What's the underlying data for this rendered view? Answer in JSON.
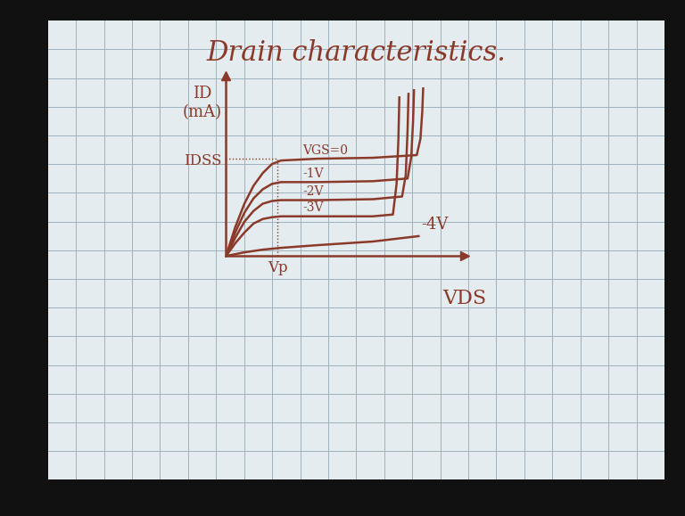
{
  "chart_data": {
    "type": "line",
    "title": "Drain characteristics.",
    "x_label": "VDS",
    "y_label": "ID\n(mA)",
    "xlim": [
      0,
      13
    ],
    "ylim": [
      0,
      10
    ],
    "xticks": [
      {
        "value": 2.8,
        "label": "Vp"
      }
    ],
    "yticks": [
      {
        "value": 5.4,
        "label": "IDSS"
      }
    ],
    "color": "#8b3a2a",
    "series": [
      {
        "name": "VGS=0",
        "x": [
          0,
          0.5,
          1,
          1.5,
          2,
          2.5,
          3,
          5,
          8,
          10.4,
          10.6,
          10.7,
          10.75
        ],
        "values": [
          0,
          1.6,
          2.9,
          3.9,
          4.6,
          5.1,
          5.3,
          5.4,
          5.45,
          5.6,
          6.5,
          8,
          9.3
        ]
      },
      {
        "name": "-1V",
        "x": [
          0,
          0.5,
          1,
          1.5,
          2,
          2.5,
          3,
          5,
          8,
          9.9,
          10.1,
          10.2,
          10.25
        ],
        "values": [
          0,
          1.3,
          2.4,
          3.2,
          3.7,
          4.0,
          4.1,
          4.1,
          4.15,
          4.3,
          5.5,
          7.5,
          9.2
        ]
      },
      {
        "name": "-2V",
        "x": [
          0,
          0.5,
          1,
          1.5,
          2,
          2.5,
          3,
          5,
          8,
          9.6,
          9.8,
          9.9,
          9.95
        ],
        "values": [
          0,
          1.0,
          1.9,
          2.5,
          2.9,
          3.05,
          3.1,
          3.1,
          3.15,
          3.3,
          4.5,
          7,
          9.0
        ]
      },
      {
        "name": "-3V",
        "x": [
          0,
          0.5,
          1,
          1.5,
          2,
          2.5,
          3,
          5,
          8,
          9.1,
          9.3,
          9.4,
          9.45
        ],
        "values": [
          0,
          0.7,
          1.3,
          1.8,
          2.05,
          2.15,
          2.2,
          2.2,
          2.2,
          2.3,
          4,
          6.5,
          8.8
        ]
      },
      {
        "name": "-4V",
        "x": [
          0,
          1,
          2,
          3,
          5,
          8,
          10.5
        ],
        "values": [
          0,
          0.2,
          0.35,
          0.45,
          0.6,
          0.8,
          1.1
        ]
      }
    ]
  }
}
